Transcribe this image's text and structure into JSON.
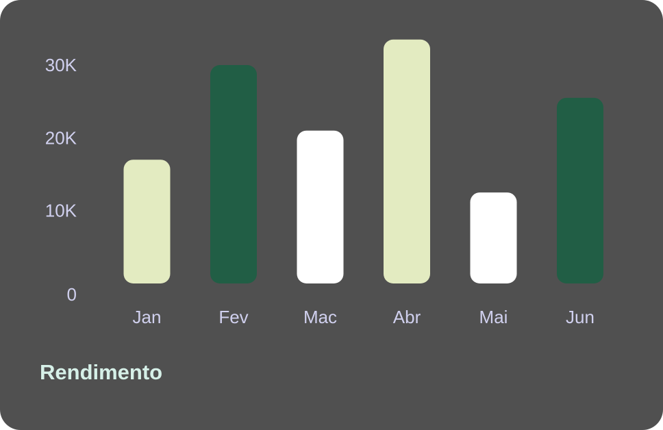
{
  "chart_data": {
    "type": "bar",
    "title": "Rendimento",
    "xlabel": "",
    "ylabel": "",
    "categories": [
      "Jan",
      "Fev",
      "Mac",
      "Abr",
      "Mai",
      "Jun"
    ],
    "values": [
      17000,
      30000,
      21000,
      33500,
      12500,
      25500
    ],
    "y_ticks": [
      {
        "value": 0,
        "label": "0"
      },
      {
        "value": 10000,
        "label": "10K"
      },
      {
        "value": 20000,
        "label": "20K"
      },
      {
        "value": 30000,
        "label": "30K"
      }
    ],
    "ylim": [
      0,
      33500
    ],
    "grid": false,
    "legend": "none",
    "bar_colors": [
      "#e3ebc1",
      "#215e45",
      "#ffffff",
      "#e3ebc1",
      "#ffffff",
      "#215e45"
    ]
  },
  "colors": {
    "card_background": "#505050",
    "axis_text": "#d0d0ee",
    "title_text": "#d6f0e8"
  }
}
